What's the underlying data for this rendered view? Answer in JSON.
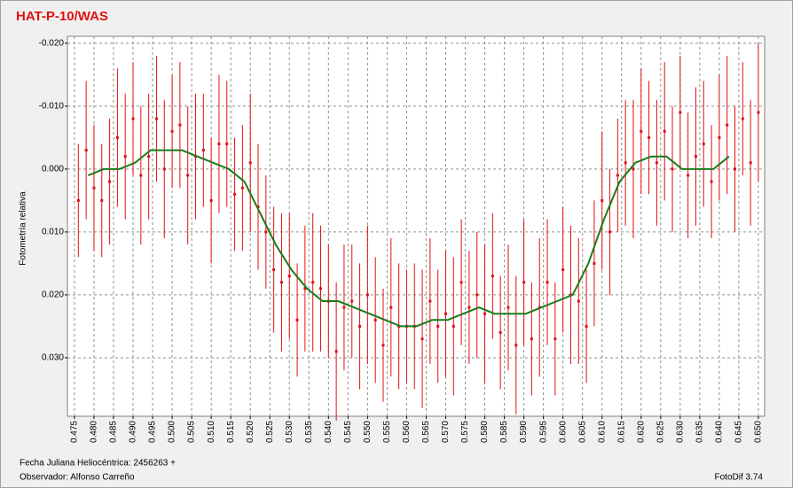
{
  "chart_data": {
    "type": "scatter",
    "title": "HAT-P-10/WAS",
    "ylabel": "Fotometría relativa",
    "footer_left_1": "Fecha Juliana Heliocéntrica: 2456263 +",
    "footer_left_2": "Observador: Alfonso Carreño",
    "footer_right": "FotoDif 3.74",
    "xlim": [
      0.4732,
      0.6516
    ],
    "ylim": [
      -0.0211,
      0.0393
    ],
    "y_inverted": true,
    "grid": true,
    "yticks": [
      {
        "value": -0.02,
        "label": "-0.020"
      },
      {
        "value": -0.01,
        "label": "-0.010"
      },
      {
        "value": 0,
        "label": "0.000"
      },
      {
        "value": 0.01,
        "label": "0.010"
      },
      {
        "value": 0.02,
        "label": "0.020"
      },
      {
        "value": 0.03,
        "label": "0.030"
      }
    ],
    "xticks": [
      {
        "value": 0.475,
        "label": "0.475"
      },
      {
        "value": 0.48,
        "label": "0.480"
      },
      {
        "value": 0.485,
        "label": "0.485"
      },
      {
        "value": 0.49,
        "label": "0.490"
      },
      {
        "value": 0.495,
        "label": "0.495"
      },
      {
        "value": 0.5,
        "label": "0.500"
      },
      {
        "value": 0.505,
        "label": "0.505"
      },
      {
        "value": 0.51,
        "label": "0.510"
      },
      {
        "value": 0.515,
        "label": "0.515"
      },
      {
        "value": 0.52,
        "label": "0.520"
      },
      {
        "value": 0.525,
        "label": "0.525"
      },
      {
        "value": 0.53,
        "label": "0.530"
      },
      {
        "value": 0.535,
        "label": "0.535"
      },
      {
        "value": 0.54,
        "label": "0.540"
      },
      {
        "value": 0.545,
        "label": "0.545"
      },
      {
        "value": 0.55,
        "label": "0.550"
      },
      {
        "value": 0.555,
        "label": "0.555"
      },
      {
        "value": 0.56,
        "label": "0.560"
      },
      {
        "value": 0.565,
        "label": "0.565"
      },
      {
        "value": 0.57,
        "label": "0.570"
      },
      {
        "value": 0.575,
        "label": "0.575"
      },
      {
        "value": 0.58,
        "label": "0.580"
      },
      {
        "value": 0.585,
        "label": "0.585"
      },
      {
        "value": 0.59,
        "label": "0.590"
      },
      {
        "value": 0.595,
        "label": "0.595"
      },
      {
        "value": 0.6,
        "label": "0.600"
      },
      {
        "value": 0.605,
        "label": "0.605"
      },
      {
        "value": 0.61,
        "label": "0.610"
      },
      {
        "value": 0.615,
        "label": "0.615"
      },
      {
        "value": 0.62,
        "label": "0.620"
      },
      {
        "value": 0.625,
        "label": "0.625"
      },
      {
        "value": 0.63,
        "label": "0.630"
      },
      {
        "value": 0.635,
        "label": "0.635"
      },
      {
        "value": 0.64,
        "label": "0.640"
      },
      {
        "value": 0.645,
        "label": "0.645"
      },
      {
        "value": 0.65,
        "label": "0.650"
      }
    ],
    "points": {
      "color": "#e01010",
      "x": [
        0.476,
        0.478,
        0.48,
        0.482,
        0.484,
        0.486,
        0.488,
        0.49,
        0.492,
        0.494,
        0.496,
        0.498,
        0.5,
        0.502,
        0.504,
        0.506,
        0.508,
        0.51,
        0.512,
        0.514,
        0.516,
        0.518,
        0.52,
        0.522,
        0.524,
        0.526,
        0.528,
        0.53,
        0.532,
        0.534,
        0.536,
        0.538,
        0.54,
        0.542,
        0.544,
        0.546,
        0.548,
        0.55,
        0.552,
        0.554,
        0.556,
        0.558,
        0.56,
        0.562,
        0.564,
        0.566,
        0.568,
        0.57,
        0.572,
        0.574,
        0.576,
        0.578,
        0.58,
        0.582,
        0.584,
        0.586,
        0.588,
        0.59,
        0.592,
        0.594,
        0.596,
        0.598,
        0.6,
        0.602,
        0.604,
        0.606,
        0.608,
        0.61,
        0.612,
        0.614,
        0.616,
        0.618,
        0.62,
        0.622,
        0.624,
        0.626,
        0.628,
        0.63,
        0.632,
        0.634,
        0.636,
        0.638,
        0.64,
        0.642,
        0.644,
        0.646,
        0.648,
        0.65
      ],
      "values": [
        0.005,
        -0.003,
        0.003,
        0.005,
        0.002,
        -0.005,
        -0.002,
        -0.008,
        0.001,
        -0.002,
        -0.008,
        0.0,
        -0.006,
        -0.007,
        0.001,
        -0.002,
        -0.003,
        0.005,
        -0.004,
        -0.004,
        0.004,
        0.003,
        -0.001,
        0.006,
        0.01,
        0.016,
        0.018,
        0.017,
        0.024,
        0.019,
        0.018,
        0.019,
        0.021,
        0.029,
        0.022,
        0.021,
        0.025,
        0.02,
        0.024,
        0.028,
        0.022,
        0.025,
        0.025,
        0.025,
        0.027,
        0.021,
        0.025,
        0.023,
        0.025,
        0.018,
        0.022,
        0.02,
        0.023,
        0.017,
        0.026,
        0.022,
        0.028,
        0.018,
        0.027,
        0.022,
        0.018,
        0.027,
        0.016,
        0.02,
        0.021,
        0.025,
        0.015,
        0.005,
        0.01,
        0.001,
        -0.001,
        0.0,
        -0.006,
        -0.005,
        -0.001,
        -0.006,
        0.0,
        -0.009,
        0.001,
        -0.002,
        -0.004,
        0.002,
        -0.005,
        -0.007,
        0.0,
        -0.008,
        -0.001,
        -0.009
      ],
      "errors": [
        0.009,
        0.011,
        0.01,
        0.009,
        0.01,
        0.011,
        0.01,
        0.009,
        0.011,
        0.01,
        0.01,
        0.011,
        0.009,
        0.01,
        0.011,
        0.01,
        0.009,
        0.01,
        0.011,
        0.01,
        0.009,
        0.01,
        0.011,
        0.01,
        0.009,
        0.01,
        0.011,
        0.01,
        0.009,
        0.01,
        0.011,
        0.01,
        0.009,
        0.011,
        0.01,
        0.009,
        0.01,
        0.011,
        0.01,
        0.009,
        0.011,
        0.01,
        0.009,
        0.01,
        0.011,
        0.01,
        0.009,
        0.01,
        0.011,
        0.01,
        0.009,
        0.01,
        0.011,
        0.01,
        0.009,
        0.01,
        0.011,
        0.01,
        0.009,
        0.011,
        0.01,
        0.009,
        0.01,
        0.011,
        0.01,
        0.009,
        0.01,
        0.011,
        0.01,
        0.009,
        0.01,
        0.011,
        0.01,
        0.009,
        0.01,
        0.011,
        0.01,
        0.009,
        0.01,
        0.011,
        0.01,
        0.009,
        0.01,
        0.011,
        0.01,
        0.009,
        0.01,
        0.011
      ]
    },
    "trend": {
      "color": "#1a7a1a",
      "x": [
        0.4785,
        0.4825,
        0.4865,
        0.4905,
        0.4945,
        0.4985,
        0.5025,
        0.5065,
        0.5105,
        0.5145,
        0.5185,
        0.5225,
        0.5265,
        0.5305,
        0.5345,
        0.5385,
        0.5425,
        0.5465,
        0.5505,
        0.5545,
        0.5585,
        0.5625,
        0.5665,
        0.5705,
        0.5745,
        0.5785,
        0.5825,
        0.5865,
        0.5905,
        0.5945,
        0.5985,
        0.6025,
        0.6065,
        0.6105,
        0.6145,
        0.6185,
        0.6225,
        0.6265,
        0.6305,
        0.6345,
        0.6385,
        0.6425
      ],
      "values": [
        0.001,
        0.0,
        0.0,
        -0.001,
        -0.003,
        -0.003,
        -0.003,
        -0.002,
        -0.001,
        0.0,
        0.002,
        0.007,
        0.012,
        0.016,
        0.019,
        0.021,
        0.021,
        0.022,
        0.023,
        0.024,
        0.025,
        0.025,
        0.024,
        0.024,
        0.023,
        0.022,
        0.023,
        0.023,
        0.023,
        0.022,
        0.021,
        0.02,
        0.015,
        0.008,
        0.002,
        -0.001,
        -0.002,
        -0.002,
        0.0,
        0.0,
        0.0,
        -0.002
      ]
    }
  }
}
